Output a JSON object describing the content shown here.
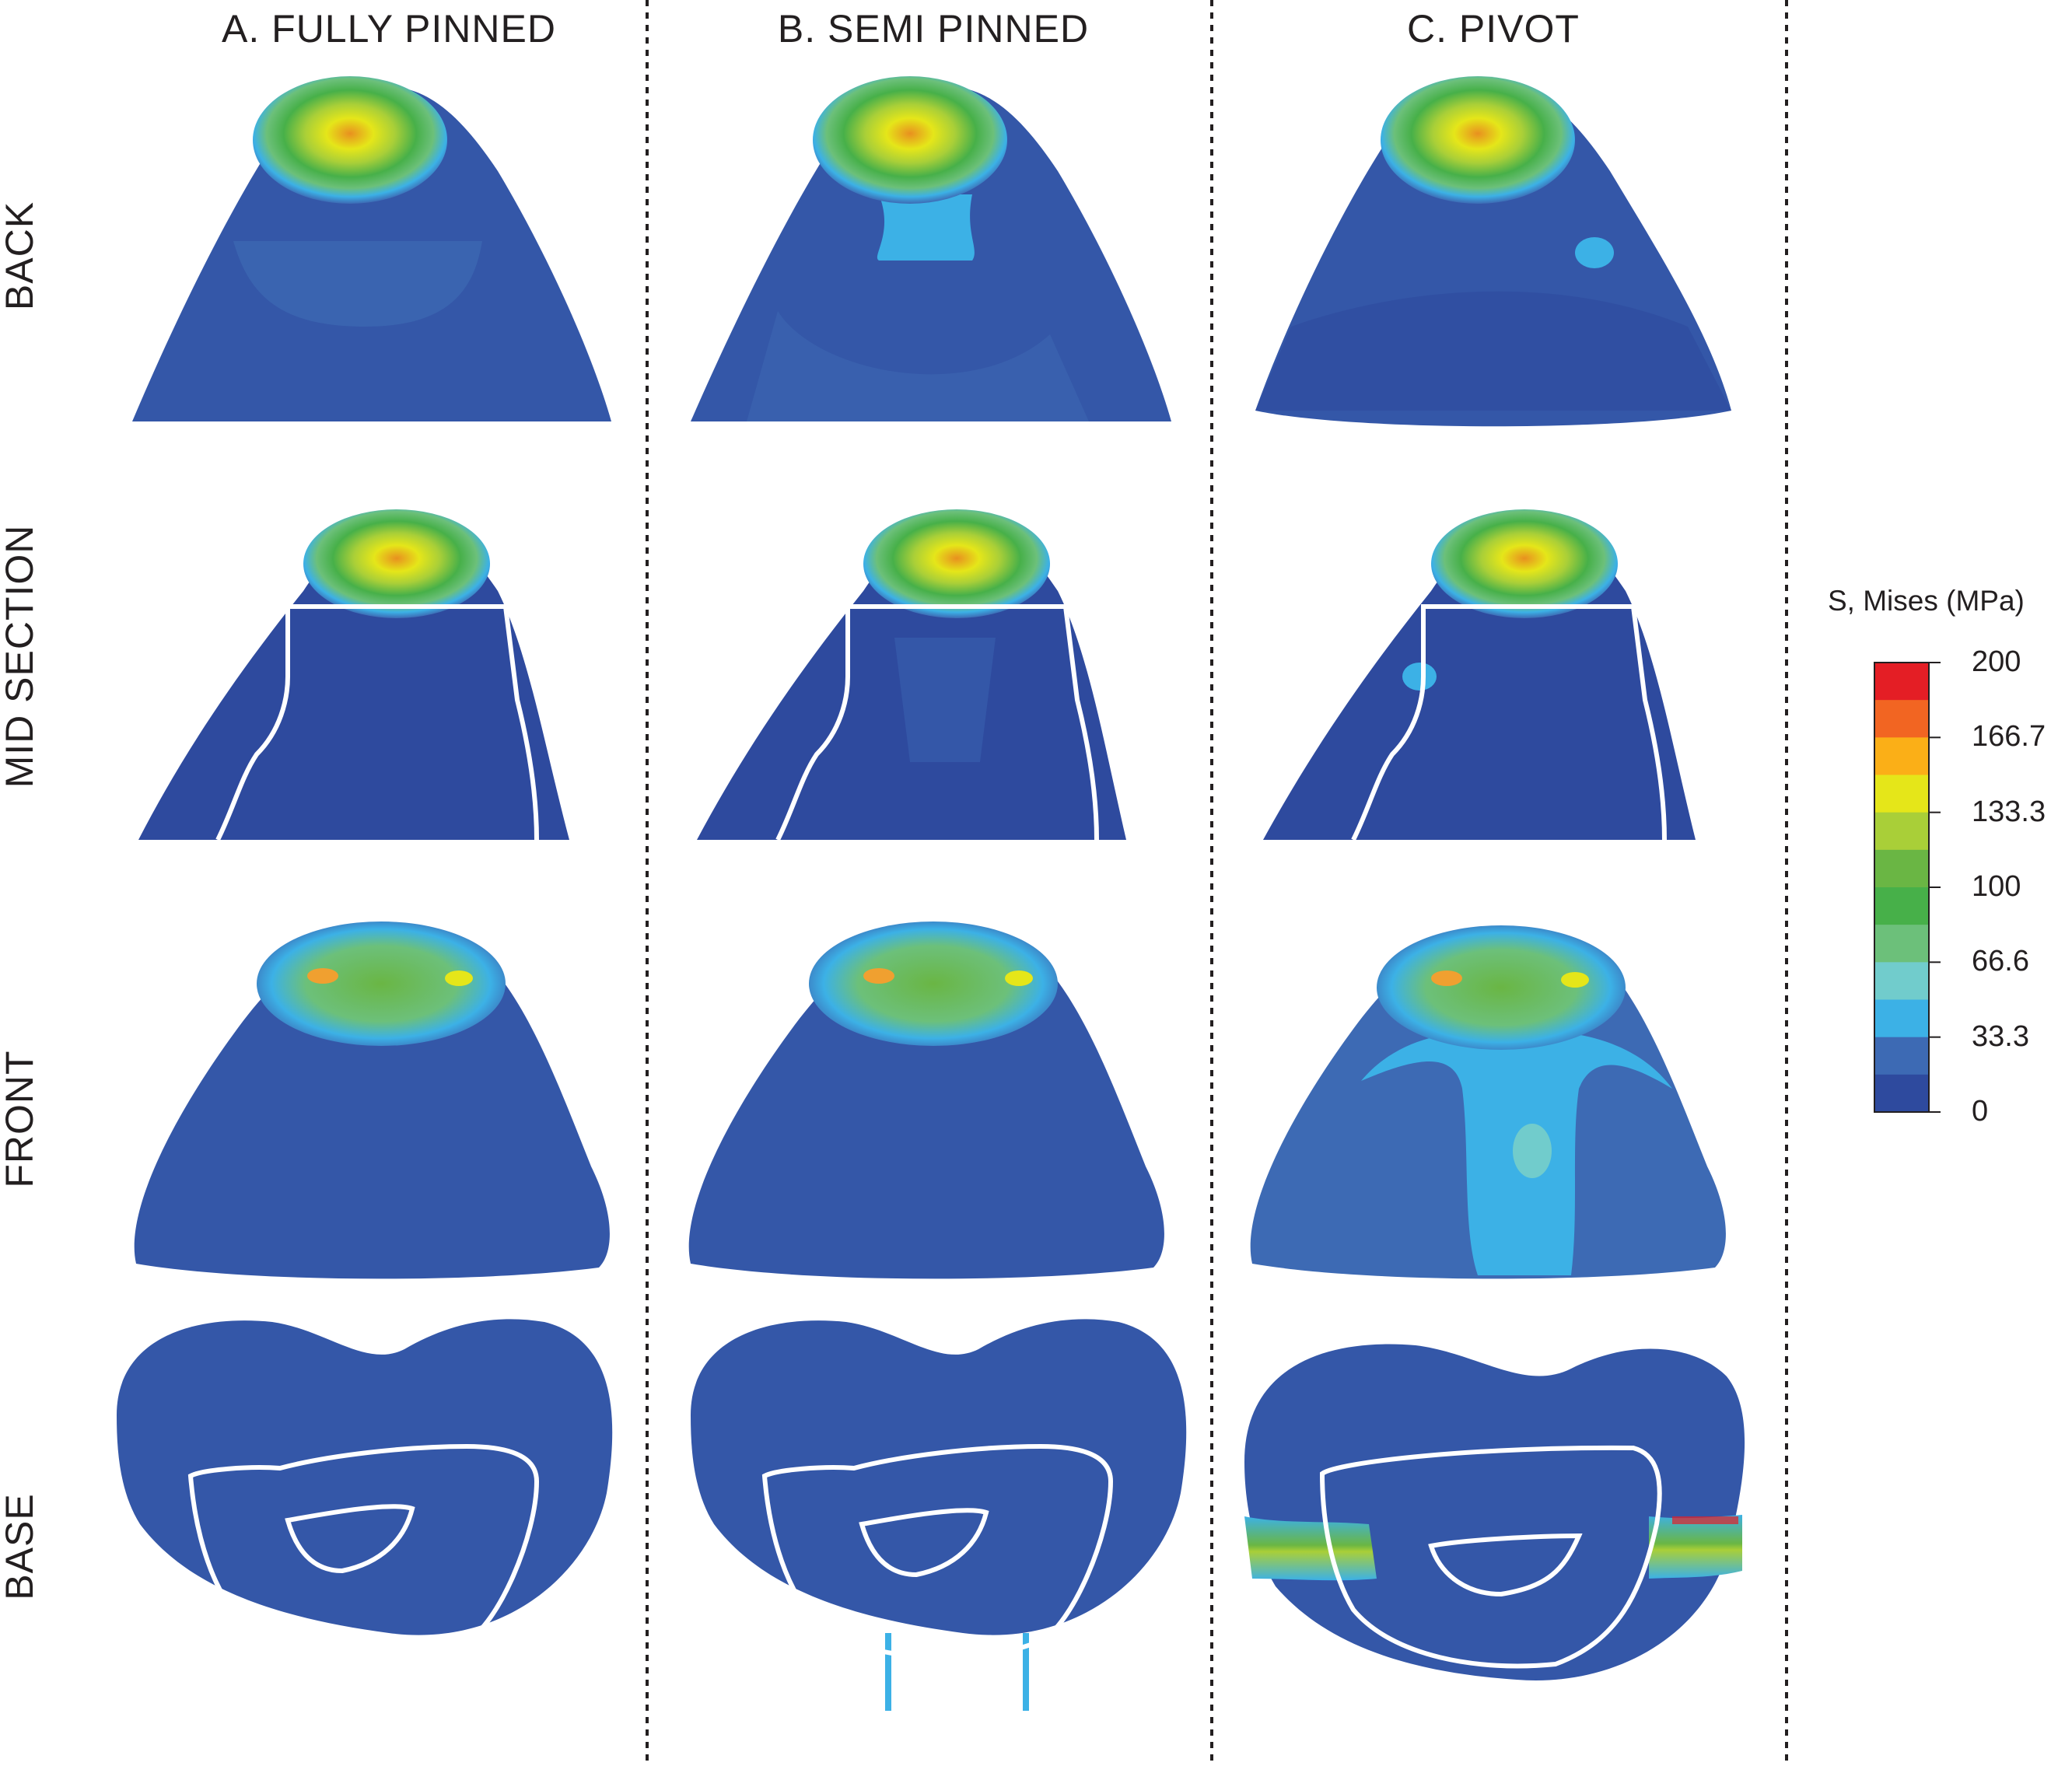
{
  "columns": [
    {
      "label": "A. FULLY PINNED"
    },
    {
      "label": "B. SEMI PINNED"
    },
    {
      "label": "C. PIVOT"
    }
  ],
  "rows": [
    {
      "label": "BACK"
    },
    {
      "label": "MID SECTION"
    },
    {
      "label": "FRONT"
    },
    {
      "label": "BASE"
    }
  ],
  "legend": {
    "title": "S, Mises  (MPa)",
    "ticks": [
      "200",
      "166.7",
      "133.3",
      "100",
      "66.6",
      "33.3",
      "0"
    ],
    "colors": [
      "#e41e25",
      "#f26522",
      "#fbaf17",
      "#e5e619",
      "#a9cf38",
      "#6ab644",
      "#47b049",
      "#6cc07a",
      "#71cccc",
      "#3cb1e6",
      "#3d6ab4",
      "#2e4a9e"
    ]
  },
  "palette": {
    "deep_blue": "#2e4a9e",
    "blue": "#3457a8",
    "mid_blue": "#3d6ab4",
    "light_blue": "#3cb1e6",
    "cyan": "#71cccc",
    "green": "#6ab644",
    "yellow": "#e5e619",
    "orange": "#f0a030",
    "red": "#e41e25",
    "outline": "#ffffff"
  }
}
